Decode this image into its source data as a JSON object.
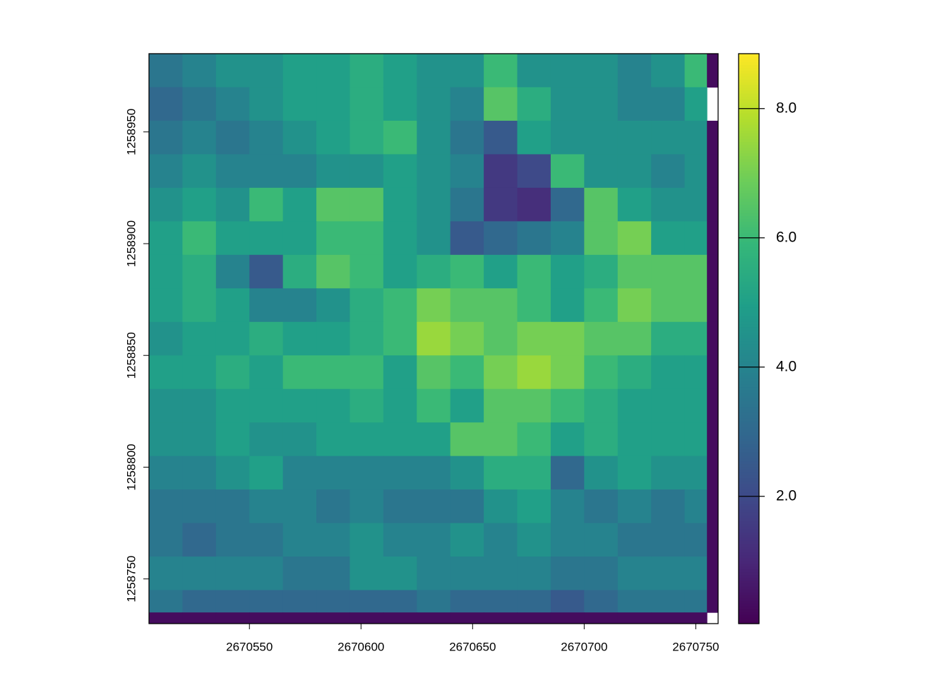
{
  "chart_data": {
    "type": "heatmap",
    "colormap": "viridis",
    "x_edges": [
      2670505,
      2670520,
      2670535,
      2670550,
      2670565,
      2670580,
      2670595,
      2670610,
      2670625,
      2670640,
      2670655,
      2670670,
      2670685,
      2670700,
      2670715,
      2670730,
      2670745,
      2670755,
      2670760
    ],
    "y_edges": [
      1258985,
      1258970,
      1258955,
      1258940,
      1258925,
      1258910,
      1258895,
      1258880,
      1258865,
      1258850,
      1258835,
      1258820,
      1258805,
      1258790,
      1258775,
      1258760,
      1258745,
      1258735,
      1258730
    ],
    "values": [
      [
        3.5,
        4,
        4.5,
        4.5,
        5,
        5,
        5.5,
        5,
        4.5,
        4.5,
        6,
        4.5,
        4.5,
        4.5,
        4,
        4.5,
        6,
        0.3
      ],
      [
        3,
        3.5,
        4,
        4.5,
        5,
        5,
        5.5,
        5,
        4.5,
        4,
        6.5,
        5.5,
        4.5,
        4.5,
        4,
        4,
        5,
        null
      ],
      [
        3.5,
        4,
        3.5,
        4,
        4.5,
        5,
        5.5,
        6,
        4.5,
        3.5,
        2.5,
        5,
        4.5,
        4.5,
        4.5,
        4.5,
        4.5,
        0.3
      ],
      [
        4,
        4.5,
        4,
        4,
        4,
        4.5,
        4.5,
        5,
        4.5,
        4,
        1.5,
        2,
        6,
        4.5,
        4.5,
        4,
        4.5,
        0.3
      ],
      [
        4.5,
        5,
        4.5,
        6,
        5,
        6.5,
        6.5,
        5,
        4.5,
        3.5,
        1.5,
        1.2,
        3,
        6.5,
        5,
        4.5,
        4.5,
        0.3
      ],
      [
        5,
        6,
        5,
        5,
        5,
        6,
        6,
        5,
        4.5,
        2.5,
        3,
        3.5,
        4,
        6.5,
        7,
        5,
        5,
        0.3
      ],
      [
        5,
        5.5,
        4,
        2.5,
        5.5,
        6.5,
        6,
        5,
        5.5,
        6,
        5,
        6,
        5,
        5.5,
        6.5,
        6.5,
        6.5,
        0.3
      ],
      [
        5,
        5.5,
        5,
        4,
        4,
        4.5,
        5.5,
        6,
        7,
        6.5,
        6.5,
        6,
        5,
        6,
        7,
        6.5,
        6.5,
        0.3
      ],
      [
        4.5,
        5,
        5,
        5.5,
        5,
        5,
        5.5,
        6,
        7.5,
        7,
        6.5,
        7,
        7,
        6.5,
        6.5,
        5.5,
        5.5,
        0.3
      ],
      [
        5,
        5,
        5.5,
        5,
        6,
        6,
        6,
        5,
        6.5,
        6,
        7,
        7.5,
        7,
        6,
        5.5,
        5,
        5,
        0.3
      ],
      [
        4.5,
        4.5,
        5,
        5,
        5,
        5,
        5.5,
        5,
        6,
        5,
        6.5,
        6.5,
        6,
        5.5,
        5,
        5,
        5,
        0.3
      ],
      [
        4.5,
        4.5,
        5,
        4.5,
        4.5,
        5,
        5,
        5,
        5,
        6.5,
        6.5,
        6,
        5,
        5.5,
        5,
        5,
        5,
        0.3
      ],
      [
        4,
        4,
        4.5,
        5,
        4,
        4,
        4,
        4,
        4,
        4.5,
        5.5,
        5.5,
        3,
        4.5,
        5,
        4.5,
        4.5,
        0.3
      ],
      [
        3.5,
        3.5,
        3.5,
        4,
        4,
        3.5,
        4,
        3.5,
        3.5,
        3.5,
        4.5,
        5,
        4,
        3.5,
        4,
        3.5,
        4,
        0.3
      ],
      [
        3.5,
        3,
        3.5,
        3.5,
        4,
        4,
        4.5,
        4,
        4,
        4.5,
        4,
        4.5,
        4,
        4,
        3.5,
        3.5,
        3.5,
        0.3
      ],
      [
        4,
        4,
        4,
        4,
        3.5,
        3.5,
        4.5,
        4.5,
        4,
        4,
        4,
        4,
        3.5,
        3.5,
        4,
        4,
        4,
        0.3
      ],
      [
        3.5,
        3,
        3,
        3,
        3,
        3,
        3,
        3,
        3.5,
        3,
        3,
        3,
        2.5,
        3,
        3.5,
        3.5,
        3.5,
        0.3
      ],
      [
        0.3,
        0.3,
        0.3,
        0.3,
        0.3,
        0.3,
        0.3,
        0.3,
        0.3,
        0.3,
        0.3,
        0.3,
        0.3,
        0.3,
        0.3,
        0.3,
        0.3,
        null
      ]
    ],
    "xlim": [
      2670505,
      2670760
    ],
    "ylim": [
      1258730,
      1258985
    ],
    "xticks": [
      2670550,
      2670600,
      2670650,
      2670700,
      2670750
    ],
    "yticks": [
      1258750,
      1258800,
      1258850,
      1258900,
      1258950
    ],
    "zlim": [
      0.03,
      8.85
    ],
    "zticks": [
      {
        "value": 2,
        "label": "2.0"
      },
      {
        "value": 4,
        "label": "4.0"
      },
      {
        "value": 6,
        "label": "6.0"
      },
      {
        "value": 8,
        "label": "8.0"
      }
    ]
  }
}
